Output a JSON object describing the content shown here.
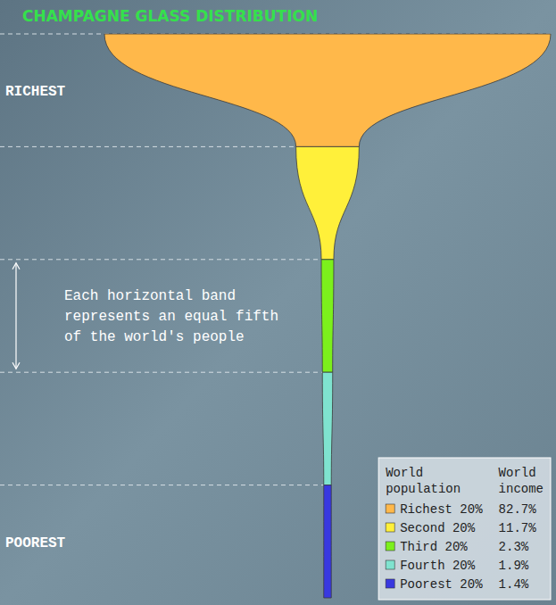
{
  "chart_data": {
    "type": "champagne",
    "title": "CHAMPAGNE GLASS DISTRIBUTION",
    "top_label": "RICHEST",
    "bottom_label": "POOREST",
    "annotation": "Each horizontal band represents an equal fifth of the world's people",
    "legend_headers": [
      "World population",
      "World income"
    ],
    "categories": [
      "Richest 20%",
      "Second 20%",
      "Third 20%",
      "Fourth 20%",
      "Poorest 20%"
    ],
    "values": [
      82.7,
      11.7,
      2.3,
      1.9,
      1.4
    ],
    "value_labels": [
      "82.7%",
      "11.7%",
      "2.3%",
      "1.9%",
      "1.4%"
    ],
    "colors": [
      "#ffb84a",
      "#fff03a",
      "#7cf01c",
      "#7fe3cf",
      "#3838e0"
    ],
    "legend": "bottom-right"
  }
}
